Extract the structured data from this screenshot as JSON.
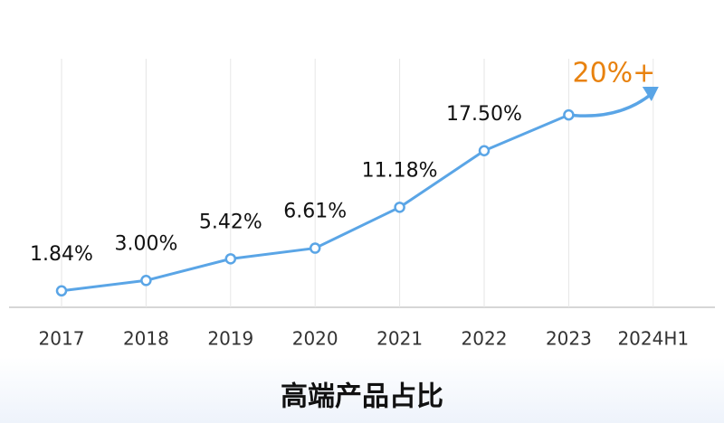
{
  "chart_data": {
    "type": "line",
    "title": "高端产品占比",
    "categories": [
      "2017",
      "2018",
      "2019",
      "2020",
      "2021",
      "2022",
      "2023",
      "2024H1"
    ],
    "series": [
      {
        "color": "#5aa5e6",
        "values": [
          1.84,
          3.0,
          5.42,
          6.61,
          11.18,
          17.5,
          21.5,
          null
        ],
        "value_labels": [
          "1.84%",
          "3.00%",
          "5.42%",
          "6.61%",
          "11.18%",
          "17.50%",
          null,
          null
        ]
      }
    ],
    "annotation": "20%+",
    "annotation_color": "#e8820f",
    "ylim": [
      0,
      30
    ],
    "grid": true
  }
}
